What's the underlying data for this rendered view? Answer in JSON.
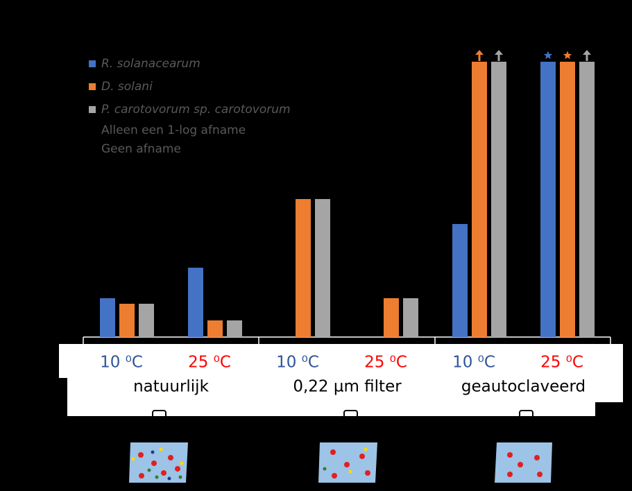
{
  "chart_data": {
    "type": "bar",
    "categories": [
      "10 ⁰C",
      "25 ⁰C",
      "10 ⁰C",
      "25 ⁰C",
      "10 ⁰C",
      "25 ⁰C"
    ],
    "category_colors": [
      "#2f5597",
      "#ff0000",
      "#2f5597",
      "#ff0000",
      "#2f5597",
      "#ff0000"
    ],
    "group_labels": [
      "natuurlijk",
      "0,22 µm filter",
      "geautoclaveerd"
    ],
    "series": [
      {
        "name": "R. solanacearum",
        "color": "#4472c4",
        "values": [
          56,
          100,
          null,
          null,
          163,
          397
        ],
        "symbols": [
          null,
          null,
          null,
          null,
          null,
          "star"
        ]
      },
      {
        "name": "D. solani",
        "color": "#ed7d31",
        "values": [
          48,
          24,
          199,
          56,
          397,
          397
        ],
        "symbols": [
          null,
          null,
          null,
          null,
          "arrow",
          "star"
        ]
      },
      {
        "name": "P. carotovorum sp. carotovorum",
        "color": "#a5a5a5",
        "values": [
          48,
          24,
          199,
          56,
          397,
          397
        ],
        "symbols": [
          null,
          null,
          null,
          null,
          "arrow",
          "arrow"
        ]
      }
    ],
    "legend_notes": [
      "Alleen een 1-log afname",
      "Geen afname"
    ],
    "ylim": [
      0,
      400
    ]
  }
}
